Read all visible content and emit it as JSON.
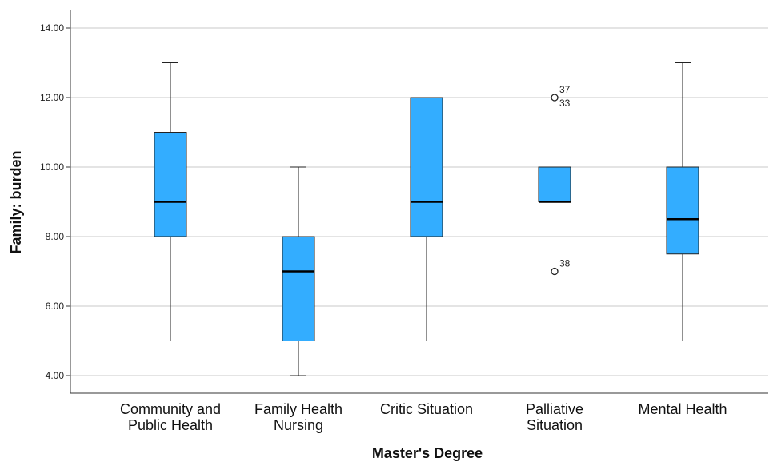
{
  "chart_data": {
    "type": "boxplot",
    "xlabel": "Master's Degree",
    "ylabel": "Family: burden",
    "ylim": [
      3.5,
      14.5
    ],
    "yticks": [
      4,
      6,
      8,
      10,
      12,
      14
    ],
    "ytick_labels": [
      "4.00",
      "6.00",
      "8.00",
      "10.00",
      "12.00",
      "14.00"
    ],
    "grid": true,
    "box_color": "#33adff",
    "categories": [
      [
        "Community and",
        "Public Health"
      ],
      [
        "Family Health",
        "Nursing"
      ],
      [
        "Critic Situation"
      ],
      [
        "Palliative",
        "Situation"
      ],
      [
        "Mental Health"
      ]
    ],
    "boxes": [
      {
        "min": 5,
        "q1": 8,
        "median": 9,
        "q3": 11,
        "max": 13,
        "outliers": []
      },
      {
        "min": 4,
        "q1": 5,
        "median": 7,
        "q3": 8,
        "max": 10,
        "outliers": []
      },
      {
        "min": 5,
        "q1": 8,
        "median": 9,
        "q3": 12,
        "max": 12,
        "outliers": []
      },
      {
        "min": 9,
        "q1": 9,
        "median": 9,
        "q3": 10,
        "max": 10,
        "outliers": [
          {
            "value": 12,
            "labels": [
              "37",
              "33"
            ]
          },
          {
            "value": 7,
            "labels": [
              "38"
            ]
          }
        ]
      },
      {
        "min": 5,
        "q1": 7.5,
        "median": 8.5,
        "q3": 10,
        "max": 13,
        "outliers": []
      }
    ]
  }
}
